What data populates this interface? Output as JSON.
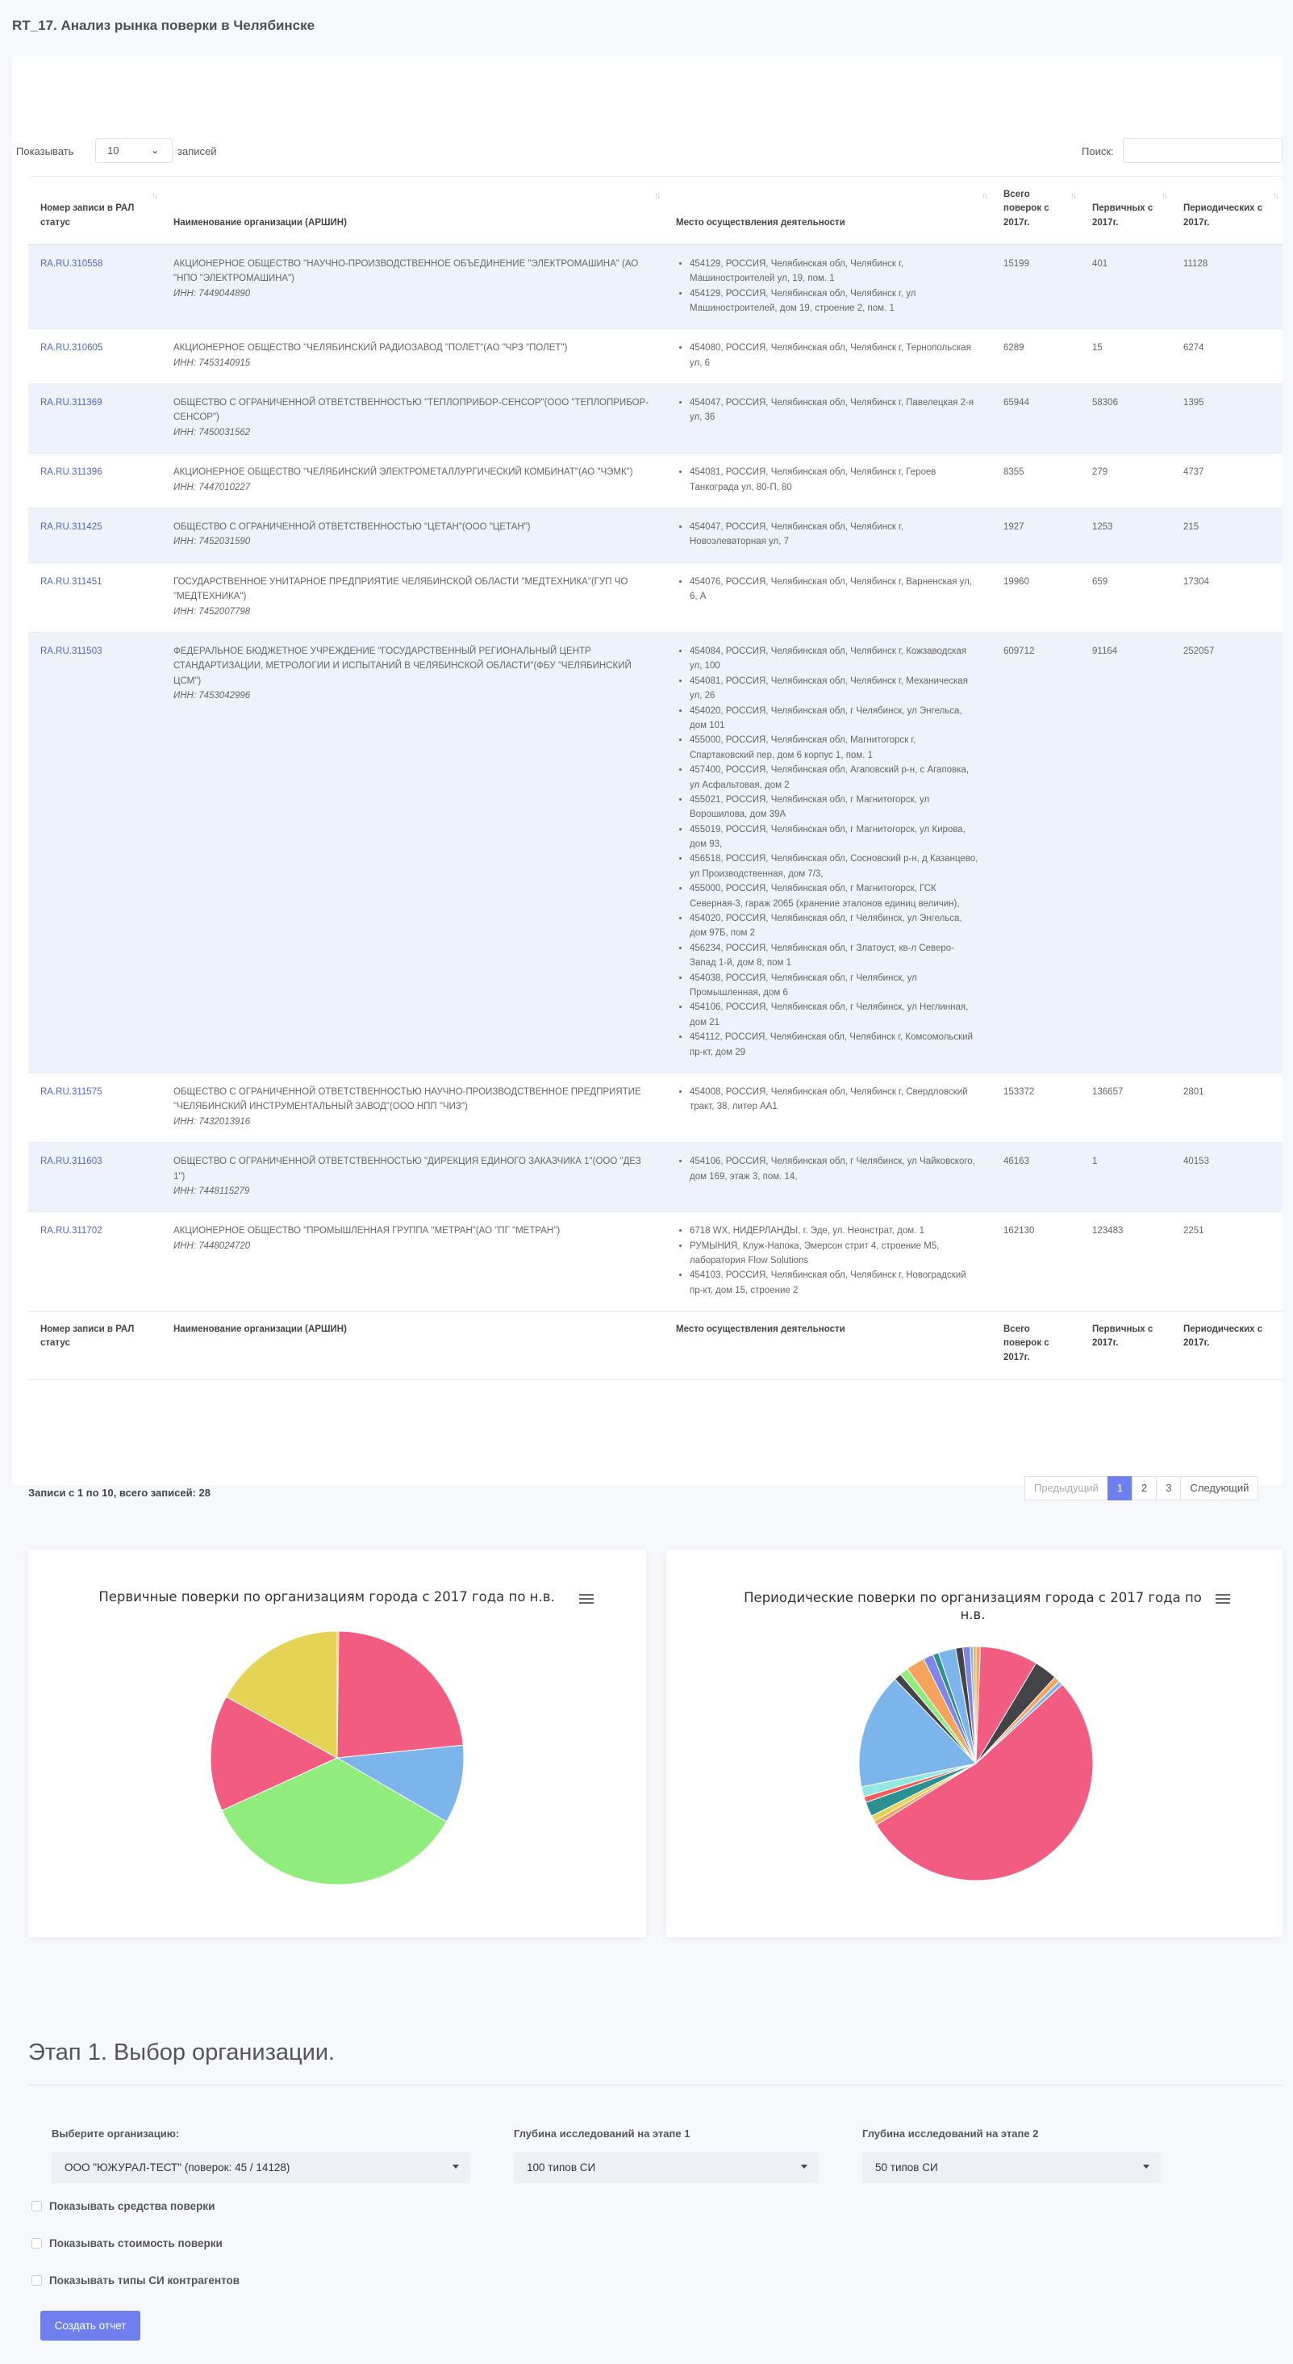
{
  "page": {
    "title": "RT_17. Анализ рынка поверки в Челябинске"
  },
  "table_controls": {
    "length_prefix": "Показывать",
    "length_value": "10",
    "length_suffix": "записей",
    "search_label": "Поиск:"
  },
  "columns": [
    "Номер записи в РАЛ статус",
    "Наименование организации (АРШИН)",
    "Место осуществления деятельности",
    "Всего поверок с 2017г.",
    "Первичных с 2017г.",
    "Периодических с 2017г."
  ],
  "rows": [
    {
      "id": "RA.RU.310558",
      "org": "АКЦИОНЕРНОЕ ОБЩЕСТВО \"НАУЧНО-ПРОИЗВОДСТВЕННОЕ ОБЪЕДИНЕНИЕ \"ЭЛЕКТРОМАШИНА\" (АО \"НПО \"ЭЛЕКТРОМАШИНА\")",
      "inn": "ИНН: 7449044890",
      "places": [
        "454129, РОССИЯ, Челябинская обл, Челябинск г, Машиностроителей ул, 19, пом. 1",
        "454129, РОССИЯ, Челябинская обл, Челябинск г, ул Машиностроителей, дом 19, строение 2, пом. 1"
      ],
      "total": "15199",
      "primary": "401",
      "periodic": "11128"
    },
    {
      "id": "RA.RU.310605",
      "org": "АКЦИОНЕРНОЕ ОБЩЕСТВО \"ЧЕЛЯБИНСКИЙ РАДИОЗАВОД \"ПОЛЕТ\"(АО \"ЧРЗ \"ПОЛЕТ\")",
      "inn": "ИНН: 7453140915",
      "places": [
        "454080, РОССИЯ, Челябинская обл, Челябинск г, Тернопольская ул, 6"
      ],
      "total": "6289",
      "primary": "15",
      "periodic": "6274"
    },
    {
      "id": "RA.RU.311369",
      "org": "ОБЩЕСТВО С ОГРАНИЧЕННОЙ ОТВЕТСТВЕННОСТЬЮ \"ТЕПЛОПРИБОР-СЕНСОР\"(ООО \"ТЕПЛОПРИБОР-СЕНСОР\")",
      "inn": "ИНН: 7450031562",
      "places": [
        "454047, РОССИЯ, Челябинская обл, Челябинск г, Павелецкая 2-я ул, 36"
      ],
      "total": "65944",
      "primary": "58306",
      "periodic": "1395"
    },
    {
      "id": "RA.RU.311396",
      "org": "АКЦИОНЕРНОЕ ОБЩЕСТВО \"ЧЕЛЯБИНСКИЙ ЭЛЕКТРОМЕТАЛЛУРГИЧЕСКИЙ КОМБИНАТ\"(АО \"ЧЭМК\")",
      "inn": "ИНН: 7447010227",
      "places": [
        "454081, РОССИЯ, Челябинская обл, Челябинск г, Героев Танкограда ул, 80-П, 80"
      ],
      "total": "8355",
      "primary": "279",
      "periodic": "4737"
    },
    {
      "id": "RA.RU.311425",
      "org": "ОБЩЕСТВО С ОГРАНИЧЕННОЙ ОТВЕТСТВЕННОСТЬЮ \"ЦЕТАН\"(ООО \"ЦЕТАН\")",
      "inn": "ИНН: 7452031590",
      "places": [
        "454047, РОССИЯ, Челябинская обл, Челябинск г, Новоэлеваторная ул, 7"
      ],
      "total": "1927",
      "primary": "1253",
      "periodic": "215"
    },
    {
      "id": "RA.RU.311451",
      "org": "ГОСУДАРСТВЕННОЕ УНИТАРНОЕ ПРЕДПРИЯТИЕ ЧЕЛЯБИНСКОЙ ОБЛАСТИ \"МЕДТЕХНИКА\"(ГУП ЧО \"МЕДТЕХНИКА\")",
      "inn": "ИНН: 7452007798",
      "places": [
        "454076, РОССИЯ, Челябинская обл, Челябинск г, Варненская ул, 6, А"
      ],
      "total": "19960",
      "primary": "659",
      "periodic": "17304"
    },
    {
      "id": "RA.RU.311503",
      "org": "ФЕДЕРАЛЬНОЕ БЮДЖЕТНОЕ УЧРЕЖДЕНИЕ \"ГОСУДАРСТВЕННЫЙ РЕГИОНАЛЬНЫЙ ЦЕНТР СТАНДАРТИЗАЦИИ, МЕТРОЛОГИИ И ИСПЫТАНИЙ В ЧЕЛЯБИНСКОЙ ОБЛАСТИ\"(ФБУ \"ЧЕЛЯБИНСКИЙ ЦСМ\")",
      "inn": "ИНН: 7453042996",
      "places": [
        "454084, РОССИЯ, Челябинская обл, Челябинск г, Кожзаводская ул, 100",
        "454081, РОССИЯ, Челябинская обл, Челябинск г, Механическая ул, 26",
        "454020, РОССИЯ, Челябинская обл, г Челябинск, ул Энгельса, дом 101",
        "455000, РОССИЯ, Челябинская обл, Магнитогорск г, Спартаковский пер, дом 6 корпус 1, пом. 1",
        "457400, РОССИЯ, Челябинская обл, Агаповский р-н, с Агаповка, ул Асфальтовая, дом 2",
        "455021, РОССИЯ, Челябинская обл, г Магнитогорск, ул Ворошилова, дом 39А",
        "455019, РОССИЯ, Челябинская обл, г Магнитогорск, ул Кирова, дом 93,",
        "456518, РОССИЯ, Челябинская обл, Сосновский р-н, д Казанцево, ул Производственная, дом 7/3,",
        "455000, РОССИЯ, Челябинская обл, г Магнитогорск, ГСК Северная-3, гараж 2065 (хранение эталонов единиц величин),",
        "454020, РОССИЯ, Челябинская обл, г Челябинск, ул Энгельса, дом 97Б, пом 2",
        "456234, РОССИЯ, Челябинская обл, г Златоуст, кв-л Северо-Запад 1-й, дом 8, пом 1",
        "454038, РОССИЯ, Челябинская обл, г Челябинск, ул Промышленная, дом 6",
        "454106, РОССИЯ, Челябинская обл, г Челябинск, ул Неглинная, дом 21",
        "454112, РОССИЯ, Челябинская обл, Челябинск г, Комсомольский пр-кт, дом 29"
      ],
      "total": "609712",
      "primary": "91164",
      "periodic": "252057"
    },
    {
      "id": "RA.RU.311575",
      "org": "ОБЩЕСТВО С ОГРАНИЧЕННОЙ ОТВЕТСТВЕННОСТЬЮ НАУЧНО-ПРОИЗВОДСТВЕННОЕ ПРЕДПРИЯТИЕ \"ЧЕЛЯБИНСКИЙ ИНСТРУМЕНТАЛЬНЫЙ ЗАВОД\"(ООО НПП \"ЧИЗ\")",
      "inn": "ИНН: 7432013916",
      "places": [
        "454008, РОССИЯ, Челябинская обл, Челябинск г, Свердловский тракт, 38, литер АА1"
      ],
      "total": "153372",
      "primary": "136657",
      "periodic": "2801"
    },
    {
      "id": "RA.RU.311603",
      "org": "ОБЩЕСТВО С ОГРАНИЧЕННОЙ ОТВЕТСТВЕННОСТЬЮ \"ДИРЕКЦИЯ ЕДИНОГО ЗАКАЗЧИКА 1\"(ООО \"ДЕЗ 1\")",
      "inn": "ИНН: 7448115279",
      "places": [
        "454106, РОССИЯ, Челябинская обл, г Челябинск, ул Чайковского, дом 169, этаж 3, пом. 14,"
      ],
      "total": "46163",
      "primary": "1",
      "periodic": "40153"
    },
    {
      "id": "RA.RU.311702",
      "org": "АКЦИОНЕРНОЕ ОБЩЕСТВО \"ПРОМЫШЛЕННАЯ ГРУППА \"МЕТРАН\"(АО \"ПГ \"МЕТРАН\")",
      "inn": "ИНН: 7448024720",
      "places": [
        "6718 WX, НИДЕРЛАНДЫ, г. Эде, ул. Неонстрат, дом. 1",
        "РУМЫНИЯ, Клуж-Напока, Эмерсон стрит 4, строение М5, лаборатория Flow Solutions",
        "454103, РОССИЯ, Челябинская обл, Челябинск г, Новоградский пр-кт, дом 15, строение 2"
      ],
      "total": "162130",
      "primary": "123483",
      "periodic": "2251"
    }
  ],
  "table_info": "Записи с 1 по 10, всего записей: 28",
  "pagination": {
    "prev": "Предыдущий",
    "pages": [
      "1",
      "2",
      "3"
    ],
    "next": "Следующий"
  },
  "charts": {
    "primary_title": "Первичные поверки по организациям города с 2017 года по н.в.",
    "periodic_title": "Периодические поверки по организациям города с 2017 года по н.в."
  },
  "chart_data": [
    {
      "type": "pie",
      "title": "Первичные поверки по организациям города с 2017 года по н.в.",
      "slices": [
        {
          "value": 0.2,
          "color": "#f7a35c"
        },
        {
          "value": 23.2,
          "color": "#f15c80"
        },
        {
          "value": 10.0,
          "color": "#7cb5ec"
        },
        {
          "value": 34.8,
          "color": "#90ed7d"
        },
        {
          "value": 14.8,
          "color": "#f15c80"
        },
        {
          "value": 17.0,
          "color": "#e4d354"
        }
      ]
    },
    {
      "type": "pie",
      "title": "Периодические поверки по организациям города с 2017 года по н.в.",
      "slices": [
        {
          "value": 0.6,
          "color": "#f7a35c"
        },
        {
          "value": 8.0,
          "color": "#f15c80"
        },
        {
          "value": 3.2,
          "color": "#434348"
        },
        {
          "value": 0.8,
          "color": "#f7a35c"
        },
        {
          "value": 0.6,
          "color": "#7cb5ec"
        },
        {
          "value": 53.0,
          "color": "#f15c80"
        },
        {
          "value": 0.6,
          "color": "#f7a35c"
        },
        {
          "value": 0.8,
          "color": "#e4d354"
        },
        {
          "value": 2.0,
          "color": "#2b908f"
        },
        {
          "value": 0.8,
          "color": "#f45b5b"
        },
        {
          "value": 1.4,
          "color": "#91e8e1"
        },
        {
          "value": 16.0,
          "color": "#7cb5ec"
        },
        {
          "value": 1.0,
          "color": "#434348"
        },
        {
          "value": 1.2,
          "color": "#90ed7d"
        },
        {
          "value": 2.6,
          "color": "#f7a35c"
        },
        {
          "value": 1.4,
          "color": "#8085e9"
        },
        {
          "value": 0.8,
          "color": "#2b908f"
        },
        {
          "value": 2.4,
          "color": "#7cb5ec"
        },
        {
          "value": 1.0,
          "color": "#434348"
        },
        {
          "value": 1.0,
          "color": "#8085e9"
        },
        {
          "value": 0.4,
          "color": "#7cb5ec"
        },
        {
          "value": 0.4,
          "color": "#f7a35c"
        }
      ]
    }
  ],
  "stage": {
    "title": "Этап 1. Выбор организации.",
    "org_label": "Выберите организацию:",
    "org_value": "ООО \"ЮЖУРАЛ-ТЕСТ\" (поверок: 45 / 14128)",
    "depth1_label": "Глубина исследований на этапе 1",
    "depth1_value": "100 типов СИ",
    "depth2_label": "Глубина исследований на этапе 2",
    "depth2_value": "50 типов СИ",
    "cb_tools": "Показывать средства поверки",
    "cb_cost": "Показывать стоимость поверки",
    "cb_types": "Показывать типы СИ контрагентов",
    "create_button": "Создать отчет"
  }
}
